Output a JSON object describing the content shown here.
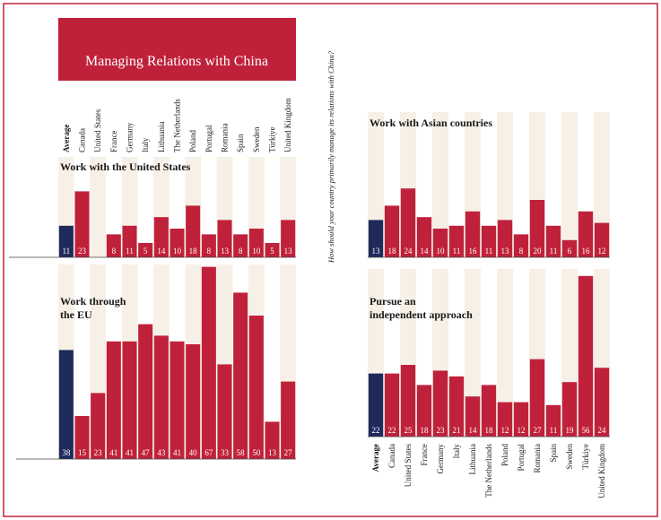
{
  "title": "Managing Relations with China",
  "ylabel": "How should your country primarily manage its relations with China?",
  "chart_data": [
    {
      "type": "bar",
      "title": "Work with the United States",
      "categories": [
        "Average",
        "Canada",
        "United States",
        "France",
        "Germany",
        "Italy",
        "Lithuania",
        "The Netherlands",
        "Poland",
        "Portugal",
        "Romania",
        "Spain",
        "Sweden",
        "Türkiye",
        "United Kingdom"
      ],
      "values": [
        11,
        23,
        null,
        8,
        11,
        5,
        14,
        10,
        18,
        8,
        13,
        8,
        10,
        5,
        13
      ],
      "color": "#c0213a",
      "average_color": "#1f2a5c"
    },
    {
      "type": "bar",
      "title": "Work through the EU",
      "values": [
        38,
        15,
        23,
        41,
        41,
        47,
        43,
        41,
        40,
        67,
        33,
        58,
        50,
        13,
        27
      ],
      "color": "#c0213a",
      "average_color": "#1f2a5c"
    },
    {
      "type": "bar",
      "title": "Work with Asian countries",
      "values": [
        13,
        18,
        24,
        14,
        10,
        11,
        16,
        11,
        13,
        8,
        20,
        11,
        6,
        16,
        12
      ],
      "color": "#c0213a",
      "average_color": "#1f2a5c"
    },
    {
      "type": "bar",
      "title": "Pursue an independent approach",
      "categories": [
        "Average",
        "Canada",
        "United States",
        "France",
        "Germany",
        "Italy",
        "Lithuania",
        "The Netherlands",
        "Poland",
        "Portugal",
        "Romania",
        "Spain",
        "Sweden",
        "Türkiye",
        "United Kingdom"
      ],
      "values": [
        22,
        22,
        25,
        18,
        23,
        21,
        14,
        18,
        12,
        12,
        27,
        11,
        19,
        56,
        24
      ],
      "color": "#c0213a",
      "average_color": "#1f2a5c"
    }
  ]
}
